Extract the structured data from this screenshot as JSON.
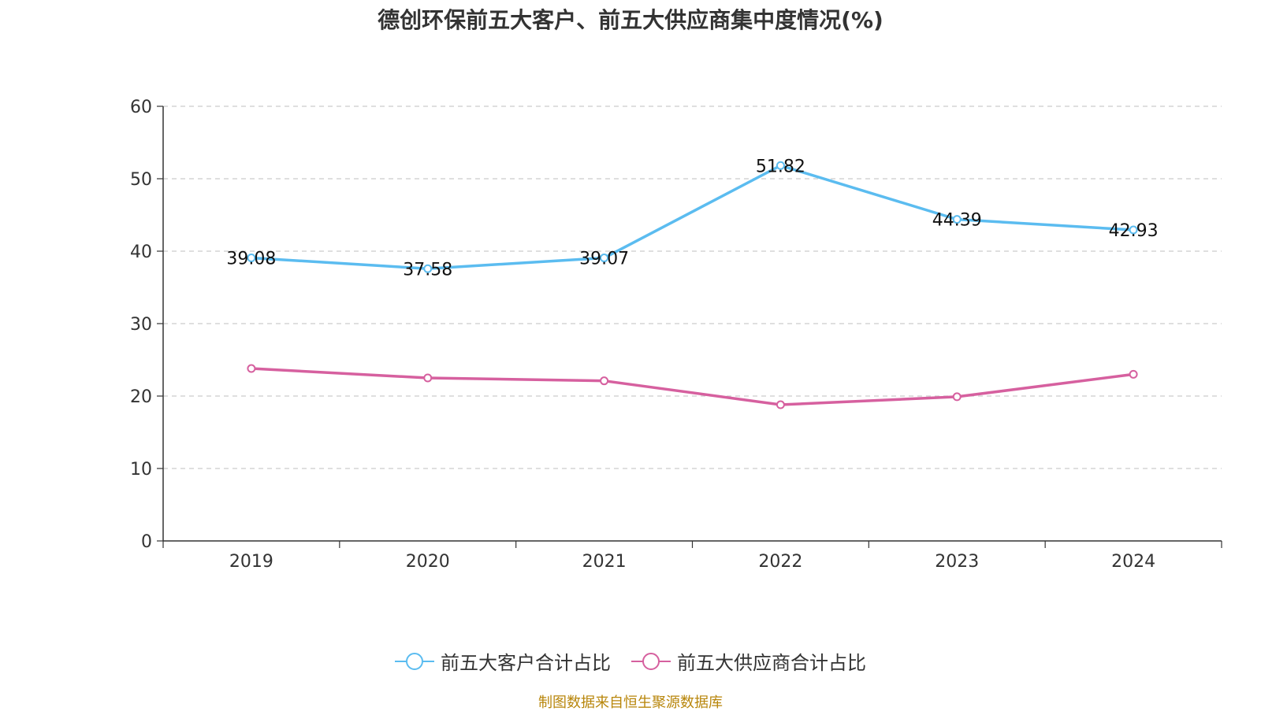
{
  "chart_data": {
    "type": "line",
    "title": "德创环保前五大客户、前五大供应商集中度情况(%)",
    "categories": [
      "2019",
      "2020",
      "2021",
      "2022",
      "2023",
      "2024"
    ],
    "series": [
      {
        "name": "前五大客户合计占比",
        "values": [
          39.08,
          37.58,
          39.07,
          51.82,
          44.39,
          42.93
        ],
        "color": "#5bbcf0",
        "show_labels": true
      },
      {
        "name": "前五大供应商合计占比",
        "values": [
          23.8,
          22.5,
          22.1,
          18.8,
          19.9,
          23.0
        ],
        "color": "#d6609f",
        "show_labels": false
      }
    ],
    "ylim": [
      0,
      60
    ],
    "yticks": [
      "0",
      "10",
      "20",
      "30",
      "40",
      "50",
      "60"
    ],
    "grid": true,
    "legend": "bottom"
  },
  "source_text": "制图数据来自恒生聚源数据库"
}
